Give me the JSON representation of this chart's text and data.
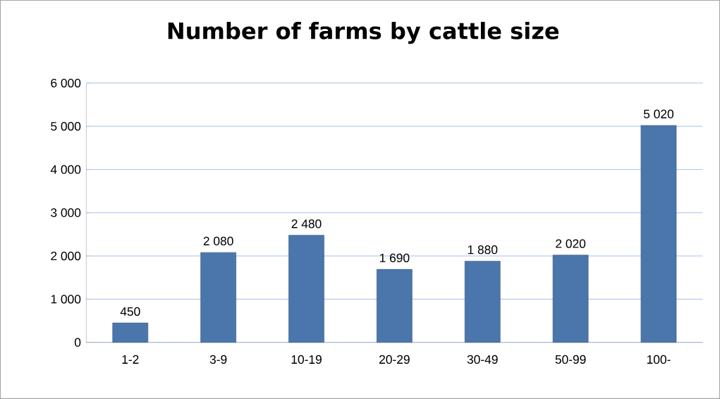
{
  "chart_data": {
    "type": "bar",
    "title": "Number of farms by cattle size",
    "categories": [
      "1-2",
      "3-9",
      "10-19",
      "20-29",
      "30-49",
      "50-99",
      "100-"
    ],
    "values": [
      450,
      2080,
      2480,
      1690,
      1880,
      2020,
      5020
    ],
    "value_labels": [
      "450",
      "2 080",
      "2 480",
      "1 690",
      "1 880",
      "2 020",
      "5 020"
    ],
    "color": "#4a76ac",
    "ylim": [
      0,
      6000
    ],
    "yticks": [
      {
        "value": 0,
        "label": "0"
      },
      {
        "value": 1000,
        "label": "1 000"
      },
      {
        "value": 2000,
        "label": "2 000"
      },
      {
        "value": 3000,
        "label": "3 000"
      },
      {
        "value": 4000,
        "label": "4 000"
      },
      {
        "value": 5000,
        "label": "5 000"
      },
      {
        "value": 6000,
        "label": "6 000"
      }
    ],
    "grid": "y"
  }
}
